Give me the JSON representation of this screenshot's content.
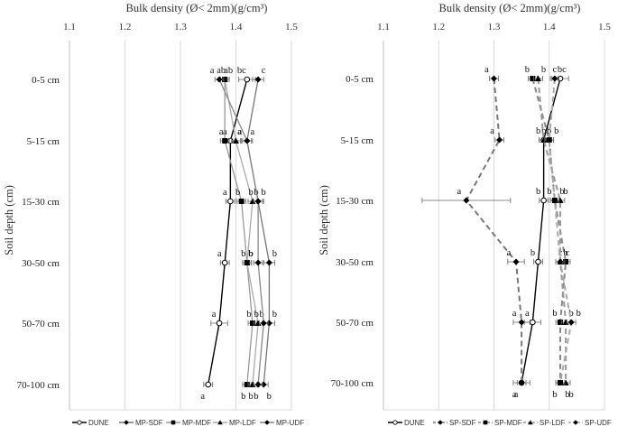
{
  "chart_data": [
    {
      "type": "line",
      "xlabel": "Bulk density (Ø< 2mm)(g/cm³)",
      "ylabel": "Soil depth (cm)",
      "xlim": [
        1.1,
        1.5
      ],
      "xticks": [
        "1.1",
        "1.2",
        "1.3",
        "1.4",
        "1.5"
      ],
      "categories": [
        "0-5 cm",
        "5-15 cm",
        "15-30 cm",
        "30-50 cm",
        "50-70 cm",
        "70-100 cm"
      ],
      "grid": "vertical",
      "legend_position": "bottom",
      "series": [
        {
          "name": "DUNE",
          "marker": "circle-open",
          "line": "solid",
          "color": "#000000",
          "values": [
            1.42,
            1.39,
            1.39,
            1.38,
            1.37,
            1.35
          ],
          "errors": [
            0.015,
            0.008,
            0.008,
            0.008,
            0.015,
            0.008
          ],
          "letters": [
            "bc",
            "a",
            "a",
            "a",
            "a",
            "a"
          ]
        },
        {
          "name": "MP-SDF",
          "marker": "diamond",
          "line": "solid",
          "color": "#777777",
          "values": [
            1.44,
            1.42,
            1.44,
            1.46,
            1.46,
            1.45
          ],
          "errors": [
            0.01,
            0.01,
            0.01,
            0.01,
            0.01,
            0.008
          ],
          "letters": [
            "c",
            "a",
            "b",
            "b",
            "b",
            "b"
          ]
        },
        {
          "name": "MP-MDF",
          "marker": "square",
          "line": "solid",
          "color": "#999999",
          "values": [
            1.38,
            1.38,
            1.41,
            1.42,
            1.43,
            1.42
          ],
          "errors": [
            0.008,
            0.008,
            0.008,
            0.008,
            0.008,
            0.008
          ],
          "letters": [
            "ab",
            "a",
            "b",
            "b",
            "b",
            "b"
          ]
        },
        {
          "name": "MP-LDF",
          "marker": "triangle",
          "line": "solid",
          "color": "#aaaaaa",
          "values": [
            1.38,
            1.4,
            1.43,
            1.42,
            1.44,
            1.43
          ],
          "errors": [
            0.008,
            0.008,
            0.008,
            0.008,
            0.008,
            0.008
          ],
          "letters": [
            "ab",
            "a",
            "b",
            "b",
            "b",
            "b"
          ]
        },
        {
          "name": "MP-UDF",
          "marker": "diamond",
          "line": "solid",
          "color": "#888888",
          "values": [
            1.37,
            1.42,
            1.44,
            1.44,
            1.45,
            1.44
          ],
          "errors": [
            0.008,
            0.008,
            0.008,
            0.008,
            0.008,
            0.008
          ],
          "letters": [
            "a",
            "a",
            "b",
            "b",
            "b",
            "b"
          ]
        }
      ],
      "legend": [
        "DUNE",
        "MP-SDF",
        "MP-MDF",
        "MP-LDF",
        "MP-UDF"
      ]
    },
    {
      "type": "line",
      "xlabel": "Bulk density (Ø< 2mm)(g/cm³)",
      "ylabel": "Soil depth (cm)",
      "xlim": [
        1.1,
        1.5
      ],
      "xticks": [
        "1.1",
        "1.2",
        "1.3",
        "1.4",
        "1.5"
      ],
      "categories": [
        "0-5 cm",
        "5-15 cm",
        "15-30 cm",
        "30-50 cm",
        "50-70 cm",
        "70-100 cm"
      ],
      "grid": "vertical",
      "legend_position": "bottom",
      "series": [
        {
          "name": "DUNE",
          "marker": "circle-open",
          "line": "solid",
          "color": "#000000",
          "values": [
            1.42,
            1.39,
            1.39,
            1.38,
            1.37,
            1.35
          ],
          "errors": [
            0.015,
            0.008,
            0.008,
            0.008,
            0.015,
            0.008
          ],
          "letters": [
            "c",
            "b",
            "b",
            "b",
            "a",
            "a"
          ]
        },
        {
          "name": "SP-SDF",
          "marker": "diamond",
          "line": "dashed",
          "color": "#777777",
          "values": [
            1.3,
            1.31,
            1.25,
            1.34,
            1.35,
            1.35
          ],
          "errors": [
            0.008,
            0.008,
            0.08,
            0.015,
            0.015,
            0.015
          ],
          "letters": [
            "a",
            "a",
            "a",
            "a",
            "a",
            "a"
          ]
        },
        {
          "name": "SP-MDF",
          "marker": "square",
          "line": "dashed",
          "color": "#888888",
          "values": [
            1.37,
            1.4,
            1.41,
            1.43,
            1.42,
            1.42
          ],
          "errors": [
            0.008,
            0.008,
            0.008,
            0.008,
            0.008,
            0.008
          ],
          "letters": [
            "b",
            "b",
            "b",
            "c",
            "b",
            "b"
          ]
        },
        {
          "name": "SP-LDF",
          "marker": "triangle",
          "line": "dashed",
          "color": "#999999",
          "values": [
            1.38,
            1.39,
            1.42,
            1.42,
            1.43,
            1.43
          ],
          "errors": [
            0.008,
            0.008,
            0.008,
            0.008,
            0.008,
            0.008
          ],
          "letters": [
            "b",
            "b",
            "b",
            "b",
            "b",
            "b"
          ]
        },
        {
          "name": "SP-UDF",
          "marker": "diamond",
          "line": "dashed",
          "color": "#aaaaaa",
          "values": [
            1.41,
            1.4,
            1.41,
            1.42,
            1.44,
            1.42
          ],
          "errors": [
            0.008,
            0.008,
            0.008,
            0.008,
            0.008,
            0.008
          ],
          "letters": [
            "bc",
            "b",
            "b",
            "c",
            "b",
            "b"
          ]
        }
      ],
      "legend": [
        "DUNE",
        "SP-SDF",
        "SP-MDF",
        "SP-LDF",
        "SP-UDF"
      ]
    }
  ]
}
